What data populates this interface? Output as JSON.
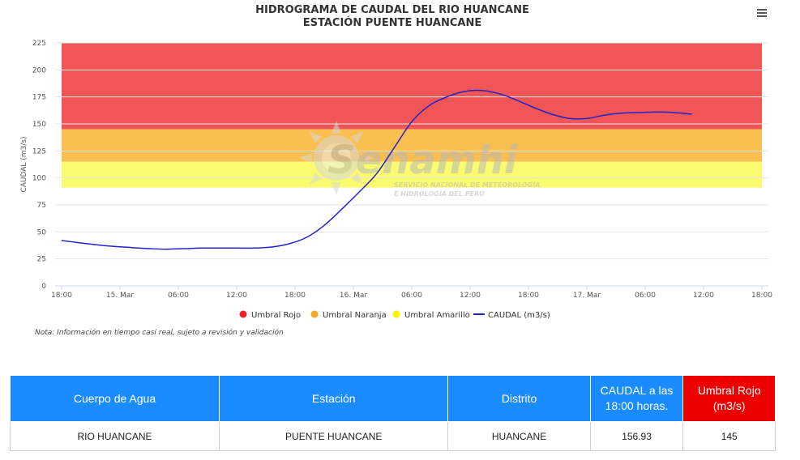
{
  "chart_data": {
    "type": "line",
    "title": "HIDROGRAMA DE CAUDAL DEL RIO HUANCANE",
    "subtitle": "ESTACIÓN PUENTE HUANCANE",
    "ylabel": "CAUDAL (m3/s)",
    "xlabel": "",
    "ylim": [
      0,
      225
    ],
    "y_ticks": [
      "0",
      "25",
      "50",
      "75",
      "100",
      "125",
      "150",
      "175",
      "200",
      "225"
    ],
    "x_ticks": [
      "18:00",
      "15. Mar",
      "06:00",
      "12:00",
      "18:00",
      "16. Mar",
      "06:00",
      "12:00",
      "18:00",
      "17. Mar",
      "06:00",
      "12:00",
      "18:00"
    ],
    "bands": [
      {
        "name": "Umbral Rojo",
        "from": 145,
        "to": 225,
        "color": "#f25555"
      },
      {
        "name": "Umbral Naranja",
        "from": 115,
        "to": 145,
        "color": "#fbbf4f"
      },
      {
        "name": "Umbral Amarillo",
        "from": 91,
        "to": 115,
        "color": "#fbfb6f"
      }
    ],
    "series": [
      {
        "name": "CAUDAL (m3/s)",
        "color": "#2222cc",
        "x": [
          0,
          3,
          6,
          9,
          12,
          15,
          18,
          21,
          24,
          27,
          30,
          33,
          36,
          39,
          42,
          45,
          48,
          51,
          54,
          57,
          60,
          63,
          66,
          69,
          72,
          75,
          78,
          81,
          84,
          87,
          90,
          93,
          96,
          99,
          102,
          105,
          108,
          111,
          114,
          117,
          120
        ],
        "values": [
          42,
          40,
          38,
          36.5,
          35.5,
          34.5,
          34,
          34.5,
          35,
          35,
          35,
          35,
          36,
          39,
          45,
          56,
          71,
          87,
          104,
          128,
          152,
          167,
          175,
          180,
          181,
          178,
          172,
          165,
          159,
          155,
          155,
          158,
          160,
          160.5,
          161,
          160.5,
          159,
          157,
          157,
          157,
          157
        ],
        "last_index": 36
      }
    ],
    "legend": [
      "Umbral Rojo",
      "Umbral Naranja",
      "Umbral Amarillo",
      "CAUDAL (m3/s)"
    ],
    "legend_colors": [
      "#ee2222",
      "#f5a623",
      "#f5f500",
      "#2222cc"
    ],
    "legend_position": "bottom-center",
    "grid": true
  },
  "header": {
    "menu_icon": "hamburger-menu-icon"
  },
  "watermark": {
    "brand": "Senamhi",
    "line1": "SERVICIO NACIONAL DE METEOROLOGÍA",
    "line2": "E HIDROLOGÍA DEL PERÚ"
  },
  "note": "Nota: Información en tiempo casi real, sujeto a revisión y validación",
  "table": {
    "headers": [
      "Cuerpo de Agua",
      "Estación",
      "Distrito",
      "CAUDAL a las 18:00 horas.",
      "Umbral Rojo (m3/s)"
    ],
    "row": [
      "RIO HUANCANE",
      "PUENTE HUANCANE",
      "HUANCANE",
      "156.93",
      "145"
    ]
  }
}
